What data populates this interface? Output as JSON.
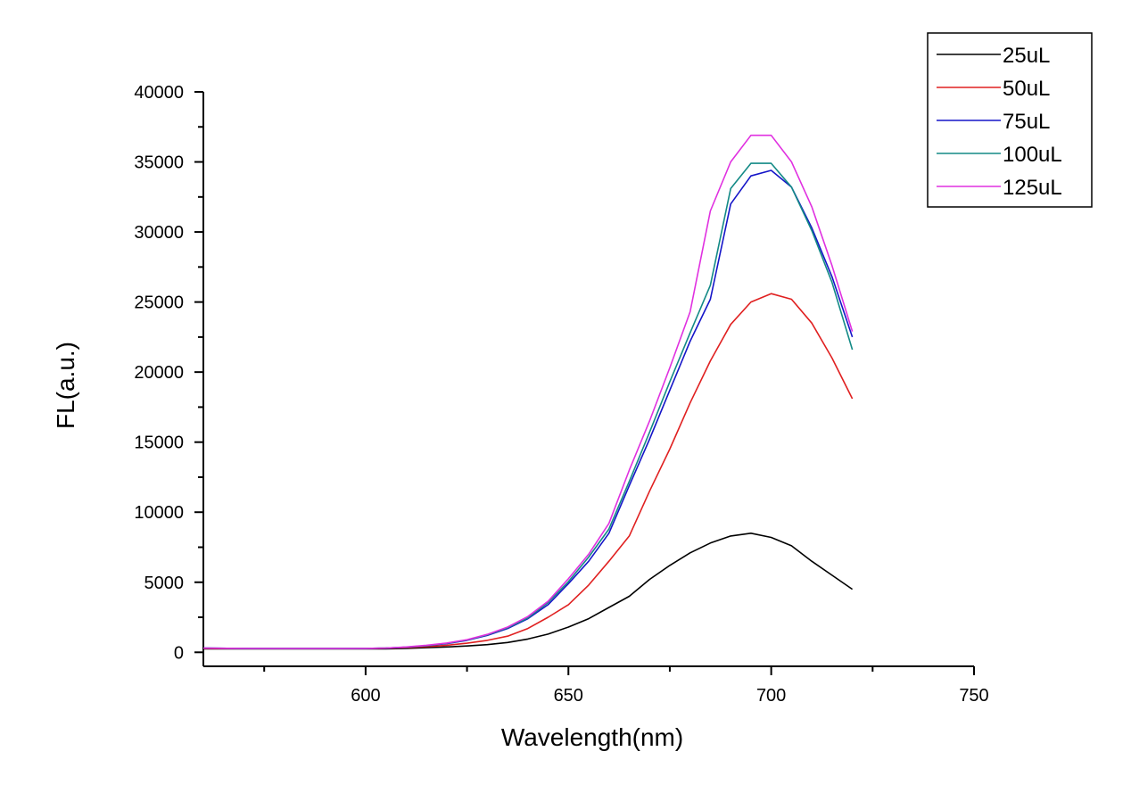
{
  "chart_data": {
    "type": "line",
    "title": "",
    "xlabel": "Wavelength(nm)",
    "ylabel": "FL(a.u.)",
    "xlim": [
      560,
      750
    ],
    "ylim": [
      -1000,
      40000
    ],
    "x_major_ticks": [
      600,
      650,
      700,
      750
    ],
    "x_minor_ticks": [
      575,
      625,
      675,
      725
    ],
    "y_major_ticks": [
      0,
      5000,
      10000,
      15000,
      20000,
      25000,
      30000,
      35000,
      40000
    ],
    "y_minor_ticks": [
      2500,
      7500,
      12500,
      17500,
      22500,
      27500,
      32500,
      37500
    ],
    "x_tick_labels": [
      "600",
      "650",
      "700",
      "750"
    ],
    "y_tick_labels": [
      "0",
      "5000",
      "10000",
      "15000",
      "20000",
      "25000",
      "30000",
      "35000",
      "40000"
    ],
    "grid": false,
    "legend_position": "top-right",
    "series": [
      {
        "name": "25uL",
        "color": "#000000",
        "x": [
          560,
          570,
          580,
          590,
          600,
          605,
          610,
          615,
          620,
          625,
          630,
          635,
          640,
          645,
          650,
          655,
          660,
          665,
          670,
          675,
          680,
          685,
          690,
          695,
          700,
          705,
          710,
          715,
          720
        ],
        "values": [
          250,
          250,
          250,
          250,
          250,
          250,
          280,
          330,
          380,
          450,
          550,
          700,
          950,
          1300,
          1800,
          2400,
          3200,
          4000,
          5200,
          6200,
          7100,
          7800,
          8300,
          8500,
          8200,
          7600,
          6500,
          5500,
          4500
        ]
      },
      {
        "name": "50uL",
        "color": "#e02020",
        "x": [
          560,
          570,
          580,
          590,
          600,
          605,
          610,
          615,
          620,
          625,
          630,
          635,
          640,
          645,
          650,
          655,
          660,
          665,
          670,
          675,
          680,
          685,
          690,
          695,
          700,
          705,
          710,
          715,
          720
        ],
        "values": [
          280,
          270,
          270,
          270,
          280,
          290,
          330,
          400,
          500,
          650,
          850,
          1150,
          1700,
          2500,
          3400,
          4800,
          6500,
          8300,
          11500,
          14500,
          17800,
          20800,
          23400,
          25000,
          25600,
          25200,
          23500,
          21000,
          18100
        ]
      },
      {
        "name": "75uL",
        "color": "#1515c8",
        "x": [
          560,
          570,
          580,
          590,
          600,
          605,
          610,
          615,
          620,
          625,
          630,
          635,
          640,
          645,
          650,
          655,
          660,
          665,
          670,
          675,
          680,
          685,
          690,
          695,
          700,
          705,
          710,
          715,
          720
        ],
        "values": [
          300,
          280,
          270,
          270,
          280,
          300,
          360,
          470,
          620,
          850,
          1200,
          1700,
          2400,
          3400,
          4900,
          6500,
          8500,
          11900,
          15200,
          18700,
          22200,
          25200,
          32000,
          34000,
          34400,
          33200,
          30300,
          26800,
          22500
        ]
      },
      {
        "name": "100uL",
        "color": "#138a86",
        "x": [
          560,
          570,
          580,
          590,
          600,
          605,
          610,
          615,
          620,
          625,
          630,
          635,
          640,
          645,
          650,
          655,
          660,
          665,
          670,
          675,
          680,
          685,
          690,
          695,
          700,
          705,
          710,
          715,
          720
        ],
        "values": [
          300,
          280,
          270,
          270,
          280,
          300,
          370,
          480,
          640,
          880,
          1250,
          1750,
          2450,
          3550,
          5050,
          6800,
          8800,
          12200,
          15700,
          19300,
          22800,
          26200,
          33100,
          34900,
          34900,
          33200,
          30100,
          26400,
          21600
        ]
      },
      {
        "name": "125uL",
        "color": "#e030e0",
        "x": [
          560,
          570,
          580,
          590,
          600,
          605,
          610,
          615,
          620,
          625,
          630,
          635,
          640,
          645,
          650,
          655,
          660,
          665,
          670,
          675,
          680,
          685,
          690,
          695,
          700,
          705,
          710,
          715,
          720
        ],
        "values": [
          300,
          280,
          270,
          270,
          280,
          300,
          380,
          500,
          660,
          900,
          1280,
          1800,
          2550,
          3650,
          5250,
          7000,
          9200,
          13000,
          16500,
          20300,
          24300,
          31500,
          35000,
          36900,
          36900,
          35000,
          31800,
          27600,
          22900
        ]
      }
    ]
  }
}
